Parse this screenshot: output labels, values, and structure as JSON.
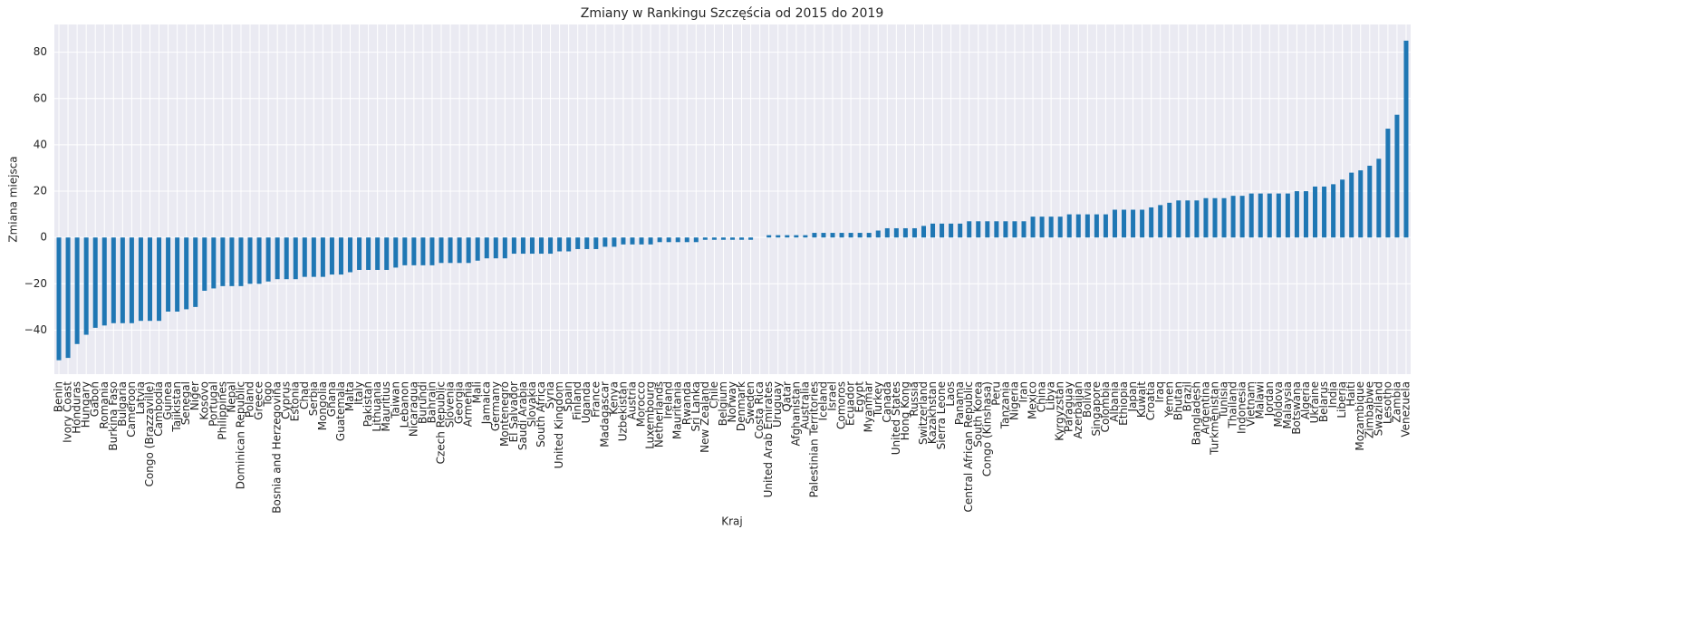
{
  "chart_data": {
    "type": "bar",
    "title": "Zmiany w Rankingu Szczęścia od 2015 do 2019",
    "x_label": "Kraj",
    "y_label": "Zmiana miejsca",
    "color": "#1f77b4",
    "grid": true,
    "ylim": [
      -59,
      92
    ],
    "yticks": [
      {
        "value": -40,
        "label": "−40"
      },
      {
        "value": -20,
        "label": "−20"
      },
      0,
      20,
      40,
      60,
      80
    ],
    "categories": [
      "Benin",
      "Ivory Coast",
      "Honduras",
      "Hungary",
      "Gabon",
      "Romania",
      "Burkina Faso",
      "Bulgaria",
      "Cameroon",
      "Latvia",
      "Congo (Brazzaville)",
      "Cambodia",
      "Guinea",
      "Tajikistan",
      "Senegal",
      "Niger",
      "Kosovo",
      "Portugal",
      "Philippines",
      "Nepal",
      "Dominican Republic",
      "Poland",
      "Greece",
      "Togo",
      "Bosnia and Herzegovina",
      "Cyprus",
      "Estonia",
      "Chad",
      "Serbia",
      "Mongolia",
      "Ghana",
      "Guatemala",
      "Malta",
      "Italy",
      "Pakistan",
      "Lithuania",
      "Mauritius",
      "Taiwan",
      "Lebanon",
      "Nicaragua",
      "Burundi",
      "Bahrain",
      "Czech Republic",
      "Slovenia",
      "Georgia",
      "Armenia",
      "Mali",
      "Jamaica",
      "Germany",
      "Montenegro",
      "El Salvador",
      "Saudi Arabia",
      "Slovakia",
      "South Africa",
      "Syria",
      "United Kingdom",
      "Spain",
      "Finland",
      "Uganda",
      "France",
      "Madagascar",
      "Kenya",
      "Uzbekistan",
      "Austria",
      "Morocco",
      "Luxembourg",
      "Netherlands",
      "Ireland",
      "Mauritania",
      "Rwanda",
      "Sri Lanka",
      "New Zealand",
      "Chile",
      "Belgium",
      "Norway",
      "Denmark",
      "Sweden",
      "Costa Rica",
      "United Arab Emirates",
      "Uruguay",
      "Qatar",
      "Afghanistan",
      "Australia",
      "Palestinian Territories",
      "Iceland",
      "Israel",
      "Comoros",
      "Ecuador",
      "Egypt",
      "Myanmar",
      "Turkey",
      "Canada",
      "United States",
      "Hong Kong",
      "Russia",
      "Switzerland",
      "Kazakhstan",
      "Sierra Leone",
      "Laos",
      "Panama",
      "Central African Republic",
      "South Korea",
      "Congo (Kinshasa)",
      "Peru",
      "Tanzania",
      "Nigeria",
      "Iran",
      "Mexico",
      "China",
      "Libya",
      "Kyrgyzstan",
      "Paraguay",
      "Azerbaijan",
      "Bolivia",
      "Singapore",
      "Colombia",
      "Albania",
      "Ethiopia",
      "Japan",
      "Kuwait",
      "Croatia",
      "Iraq",
      "Yemen",
      "Bhutan",
      "Brazil",
      "Bangladesh",
      "Argentina",
      "Turkmenistan",
      "Tunisia",
      "Thailand",
      "Indonesia",
      "Vietnam",
      "Malawi",
      "Jordan",
      "Moldova",
      "Malaysia",
      "Botswana",
      "Algeria",
      "Ukraine",
      "Belarus",
      "India",
      "Liberia",
      "Haiti",
      "Mozambique",
      "Zimbabwe",
      "Swaziland",
      "Lesotho",
      "Zambia",
      "Venezuela"
    ],
    "values": [
      -53,
      -52,
      -46,
      -42,
      -39,
      -38,
      -37,
      -37,
      -37,
      -36,
      -36,
      -36,
      -32,
      -32,
      -31,
      -30,
      -23,
      -22,
      -21,
      -21,
      -21,
      -20,
      -20,
      -19,
      -18,
      -18,
      -18,
      -17,
      -17,
      -17,
      -16,
      -16,
      -15,
      -14,
      -14,
      -14,
      -14,
      -13,
      -12,
      -12,
      -12,
      -12,
      -11,
      -11,
      -11,
      -11,
      -10,
      -9,
      -9,
      -9,
      -7,
      -7,
      -7,
      -7,
      -7,
      -6,
      -6,
      -5,
      -5,
      -5,
      -4,
      -4,
      -3,
      -3,
      -3,
      -3,
      -2,
      -2,
      -2,
      -2,
      -2,
      -1,
      -1,
      -1,
      -1,
      -1,
      -1,
      0,
      1,
      1,
      1,
      1,
      1,
      2,
      2,
      2,
      2,
      2,
      2,
      2,
      3,
      4,
      4,
      4,
      4,
      5,
      6,
      6,
      6,
      6,
      7,
      7,
      7,
      7,
      7,
      7,
      7,
      9,
      9,
      9,
      9,
      10,
      10,
      10,
      10,
      10,
      12,
      12,
      12,
      12,
      13,
      14,
      15,
      16,
      16,
      16,
      17,
      17,
      17,
      18,
      18,
      19,
      19,
      19,
      19,
      19,
      20,
      20,
      22,
      22,
      23,
      25,
      28,
      29,
      31,
      34,
      47,
      53,
      85
    ]
  }
}
